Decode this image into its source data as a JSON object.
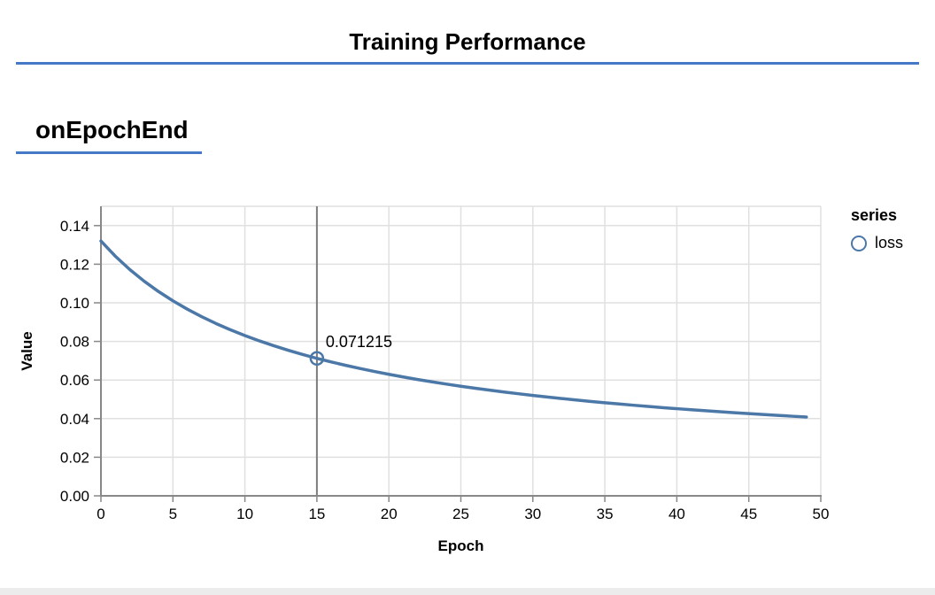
{
  "header": {
    "title": "Training Performance"
  },
  "section": {
    "heading": "onEpochEnd"
  },
  "colors": {
    "accent_rule": "#4678c8",
    "line": "#4c78a8",
    "grid": "#e0e0e0",
    "axis": "#888888",
    "hover_rule": "#7d7d7d",
    "label": "#000000",
    "bottom_strip": "#ececec"
  },
  "chart_data": {
    "type": "line",
    "xlabel": "Epoch",
    "ylabel": "Value",
    "xlim": [
      0,
      50
    ],
    "ylim": [
      0,
      0.15
    ],
    "x_ticks": [
      0,
      5,
      10,
      15,
      20,
      25,
      30,
      35,
      40,
      45,
      50
    ],
    "y_ticks": [
      {
        "value": 0.0,
        "label": "0.00"
      },
      {
        "value": 0.02,
        "label": "0.02"
      },
      {
        "value": 0.04,
        "label": "0.04"
      },
      {
        "value": 0.06,
        "label": "0.06"
      },
      {
        "value": 0.08,
        "label": "0.08"
      },
      {
        "value": 0.1,
        "label": "0.10"
      },
      {
        "value": 0.12,
        "label": "0.12"
      },
      {
        "value": 0.14,
        "label": "0.14"
      }
    ],
    "grid": true,
    "legend": {
      "title": "series",
      "position": "right",
      "items": [
        {
          "label": "loss",
          "color": "#4c78a8",
          "symbol": "open-circle"
        }
      ]
    },
    "series": [
      {
        "name": "loss",
        "x_is_index": true,
        "values": [
          0.132013,
          0.124133,
          0.117266,
          0.111211,
          0.105833,
          0.101024,
          0.096699,
          0.092788,
          0.089235,
          0.085992,
          0.08302,
          0.080287,
          0.077766,
          0.075432,
          0.073265,
          0.071215,
          0.069366,
          0.067606,
          0.065956,
          0.064407,
          0.062949,
          0.061575,
          0.060277,
          0.05905,
          0.057888,
          0.056785,
          0.055737,
          0.054741,
          0.053792,
          0.052888,
          0.052025,
          0.0512,
          0.050411,
          0.049656,
          0.048932,
          0.048238,
          0.047572,
          0.046932,
          0.046316,
          0.045724,
          0.045154,
          0.044605,
          0.044075,
          0.043564,
          0.043071,
          0.042594,
          0.042133,
          0.041688,
          0.041256,
          0.040839
        ]
      }
    ],
    "highlight": {
      "epoch": 15,
      "value": 0.071215,
      "label": "0.071215"
    }
  }
}
